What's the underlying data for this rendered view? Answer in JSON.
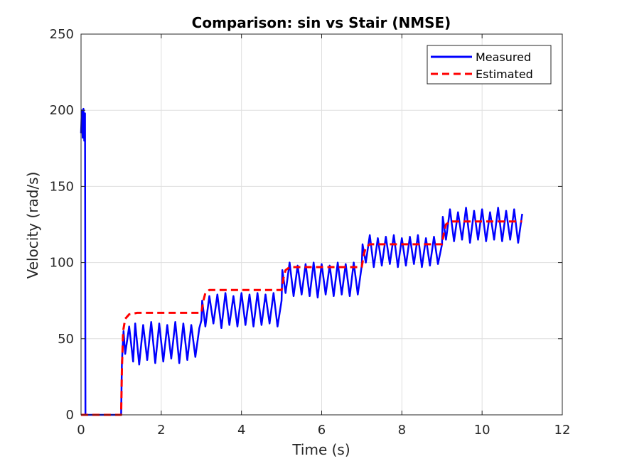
{
  "chart_data": {
    "type": "line",
    "title": "Comparison: sin vs Stair (NMSE)",
    "xlabel": "Time (s)",
    "ylabel": "Velocity (rad/s)",
    "xlim": [
      0,
      12
    ],
    "ylim": [
      0,
      250
    ],
    "xticks": [
      0,
      2,
      4,
      6,
      8,
      10,
      12
    ],
    "yticks": [
      0,
      50,
      100,
      150,
      200,
      250
    ],
    "xtick_labels": [
      "0",
      "2",
      "4",
      "6",
      "8",
      "10",
      "12"
    ],
    "ytick_labels": [
      "0",
      "50",
      "100",
      "150",
      "200",
      "250"
    ],
    "grid": true,
    "legend_position": "top-right",
    "series": [
      {
        "name": "Measured",
        "color": "#0000ff",
        "style": "solid",
        "x": [
          0.0,
          0.02,
          0.04,
          0.06,
          0.08,
          0.1,
          0.11,
          0.12,
          0.13,
          1.0,
          1.02,
          1.06,
          1.1,
          1.2,
          1.3,
          1.35,
          1.45,
          1.55,
          1.65,
          1.75,
          1.85,
          1.95,
          2.05,
          2.15,
          2.25,
          2.35,
          2.45,
          2.55,
          2.65,
          2.75,
          2.85,
          2.95,
          3.0,
          3.02,
          3.1,
          3.2,
          3.3,
          3.4,
          3.5,
          3.6,
          3.7,
          3.8,
          3.9,
          4.0,
          4.1,
          4.2,
          4.3,
          4.4,
          4.5,
          4.6,
          4.7,
          4.8,
          4.9,
          5.0,
          5.02,
          5.1,
          5.2,
          5.3,
          5.4,
          5.5,
          5.6,
          5.7,
          5.8,
          5.9,
          6.0,
          6.1,
          6.2,
          6.3,
          6.4,
          6.5,
          6.6,
          6.7,
          6.8,
          6.9,
          7.0,
          7.02,
          7.1,
          7.2,
          7.3,
          7.4,
          7.5,
          7.6,
          7.7,
          7.8,
          7.9,
          8.0,
          8.1,
          8.2,
          8.3,
          8.4,
          8.5,
          8.6,
          8.7,
          8.8,
          8.9,
          9.0,
          9.02,
          9.1,
          9.2,
          9.3,
          9.4,
          9.5,
          9.6,
          9.7,
          9.8,
          9.9,
          10.0,
          10.1,
          10.2,
          10.3,
          10.4,
          10.5,
          10.6,
          10.7,
          10.8,
          10.9,
          11.0
        ],
        "y": [
          185,
          200,
          182,
          201,
          180,
          198,
          0,
          0,
          0,
          0,
          35,
          55,
          40,
          58,
          35,
          60,
          33,
          59,
          36,
          61,
          34,
          60,
          35,
          59,
          37,
          61,
          34,
          60,
          36,
          59,
          38,
          57,
          62,
          75,
          58,
          78,
          60,
          79,
          57,
          80,
          59,
          78,
          58,
          80,
          59,
          79,
          58,
          80,
          59,
          79,
          60,
          80,
          58,
          75,
          95,
          80,
          100,
          78,
          98,
          79,
          99,
          78,
          100,
          77,
          99,
          79,
          98,
          78,
          100,
          79,
          99,
          78,
          100,
          79,
          98,
          112,
          100,
          118,
          97,
          116,
          98,
          117,
          99,
          118,
          97,
          116,
          98,
          117,
          99,
          118,
          97,
          116,
          98,
          117,
          99,
          112,
          130,
          115,
          135,
          114,
          133,
          115,
          136,
          113,
          134,
          115,
          135,
          114,
          133,
          115,
          136,
          114,
          134,
          115,
          135,
          113,
          132
        ]
      },
      {
        "name": "Estimated",
        "color": "#ff0000",
        "style": "dashed",
        "x": [
          0.0,
          0.95,
          1.0,
          1.02,
          1.05,
          1.1,
          1.2,
          1.4,
          2.95,
          3.0,
          3.05,
          3.1,
          3.2,
          3.4,
          4.95,
          5.0,
          5.05,
          5.1,
          5.2,
          5.4,
          6.95,
          7.0,
          7.05,
          7.1,
          7.2,
          7.4,
          8.95,
          9.0,
          9.05,
          9.1,
          9.2,
          9.4,
          11.0
        ],
        "y": [
          0,
          0,
          0,
          30,
          55,
          63,
          66,
          67,
          67,
          67,
          75,
          80,
          82,
          82,
          82,
          82,
          90,
          95,
          97,
          97,
          97,
          97,
          105,
          110,
          112,
          112,
          112,
          112,
          120,
          125,
          127,
          127,
          127
        ]
      }
    ]
  }
}
